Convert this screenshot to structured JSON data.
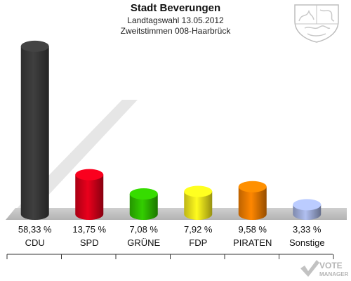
{
  "chart_data": {
    "type": "bar",
    "title": "Stadt Beverungen",
    "subtitle": [
      "Landtagswahl 13.05.2012",
      "Zweitstimmen 008-Haarbrück"
    ],
    "categories": [
      "CDU",
      "SPD",
      "GRÜNE",
      "FDP",
      "PIRATEN",
      "Sonstige"
    ],
    "values": [
      58.33,
      13.75,
      7.08,
      7.92,
      9.58,
      3.33
    ],
    "value_labels": [
      "58,33 %",
      "13,75 %",
      "7,08 %",
      "7,92 %",
      "9,58 %",
      "3,33 %"
    ],
    "colors": [
      "#3a3a3a",
      "#d9001a",
      "#2fbf00",
      "#f4e81c",
      "#f27d00",
      "#a3b1de"
    ],
    "ylim": [
      0,
      60
    ],
    "grid": false,
    "legend": "none"
  },
  "watermark": {
    "line1": "VOTE",
    "line2": "MANAGER"
  },
  "crest": {
    "name": "nrw-coat-of-arms-icon"
  }
}
